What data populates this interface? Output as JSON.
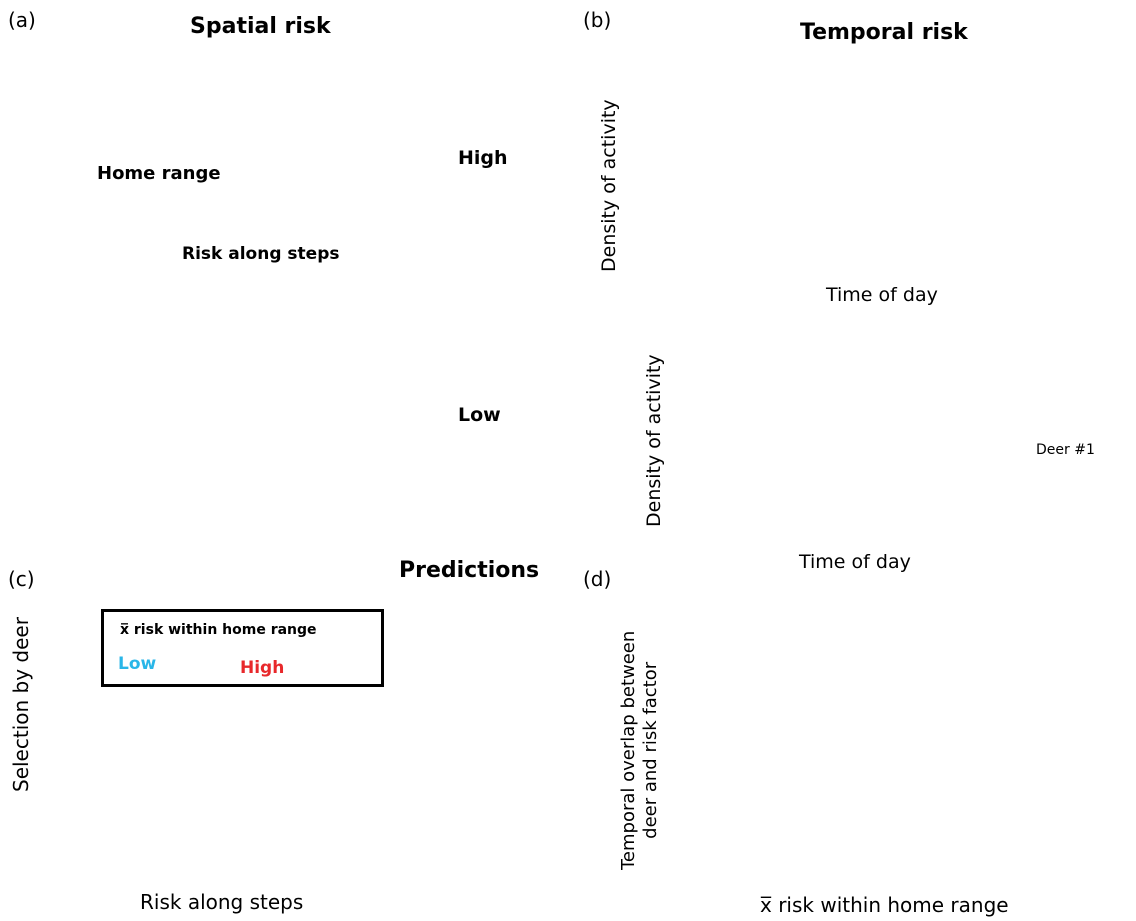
{
  "panels": {
    "a": {
      "letter": "(a)",
      "title": "Spatial risk",
      "map": {
        "home_range_label": "Home range",
        "risk_steps_label": "Risk along steps",
        "colorbar_high": "High",
        "colorbar_low": "Low"
      }
    },
    "b": {
      "letter": "(b)",
      "title": "Temporal risk",
      "top_plot": {
        "ylabel": "Density of activity",
        "xlabel": "Time of day"
      },
      "bottom_plot": {
        "ylabel": "Density of activity",
        "xlabel": "Time of day",
        "deer_label": "Deer #1"
      }
    },
    "c": {
      "letter": "(c)",
      "title": "Predictions",
      "ylabel": "Selection by deer",
      "xlabel": "Risk along steps",
      "legend": {
        "title": "x̅ risk within home range",
        "low_label": "Low",
        "high_label": "High"
      }
    },
    "d": {
      "letter": "(d)",
      "ylabel_line1": "Temporal overlap between",
      "ylabel_line2": "deer and risk factor",
      "xlabel": "x̅ risk within home range"
    }
  },
  "colors": {
    "low": "#29b6e8",
    "high": "#e8282b",
    "cougar": "#1e9a6e",
    "overlap": "#7a7878",
    "silhouette": "#000000",
    "faded_silhouette": "#c9c9c9"
  }
}
